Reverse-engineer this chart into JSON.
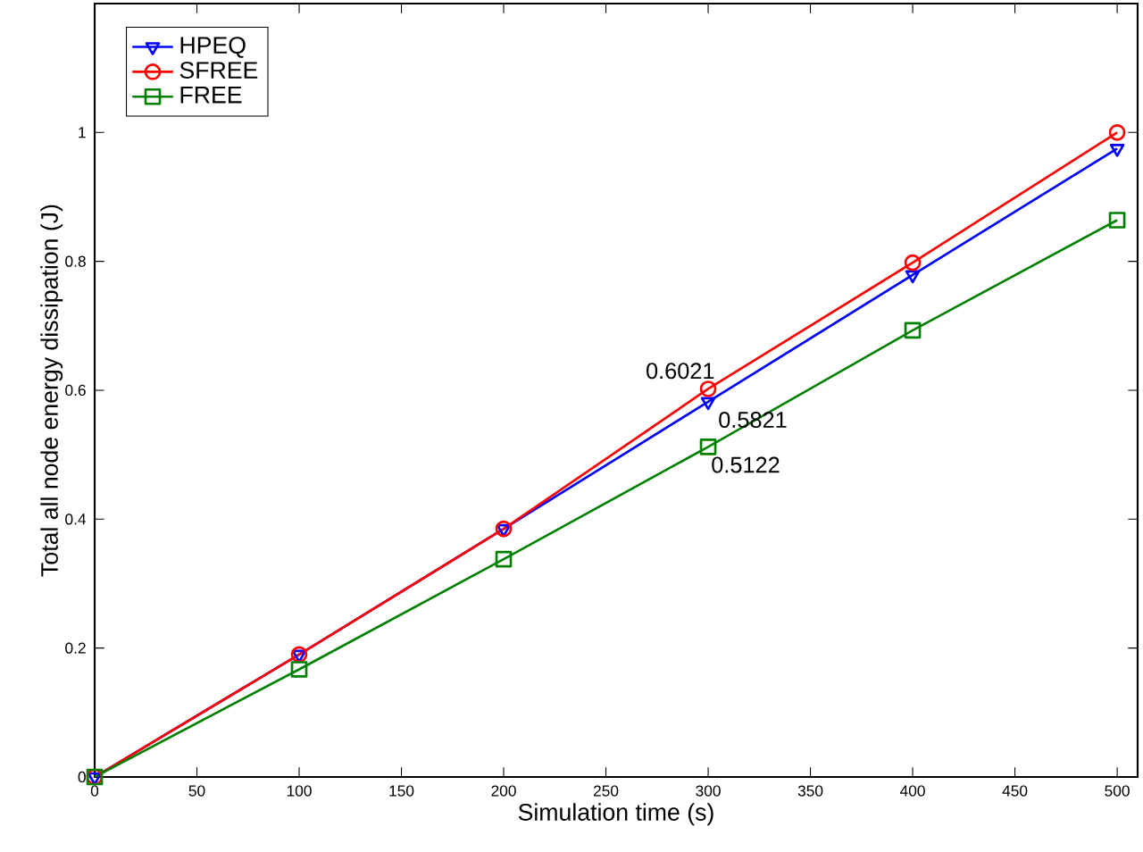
{
  "chart_data": {
    "type": "line",
    "xlabel": "Simulation time (s)",
    "ylabel": "Total all node energy dissipation (J)",
    "x": [
      0,
      100,
      200,
      300,
      400,
      500
    ],
    "series": [
      {
        "name": "HPEQ",
        "color": "#0000ff",
        "marker": "triangle",
        "values": [
          0,
          0.19,
          0.385,
          0.5821,
          0.779,
          0.975
        ],
        "value_labels": [
          null,
          null,
          null,
          "0.5821",
          null,
          null
        ]
      },
      {
        "name": "SFREE",
        "color": "#ff0000",
        "marker": "circle",
        "values": [
          0,
          0.19,
          0.385,
          0.6021,
          0.798,
          1.0
        ],
        "value_labels": [
          null,
          null,
          null,
          "0.6021",
          null,
          null
        ]
      },
      {
        "name": "FREE",
        "color": "#008000",
        "marker": "square",
        "values": [
          0,
          0.167,
          0.338,
          0.5122,
          0.693,
          0.864
        ],
        "value_labels": [
          null,
          null,
          null,
          "0.5122",
          null,
          null
        ]
      }
    ],
    "xlim": [
      0,
      510
    ],
    "ylim": [
      0,
      1.2
    ],
    "xticks": [
      0,
      50,
      100,
      150,
      200,
      250,
      300,
      350,
      400,
      450,
      500
    ],
    "yticks": [
      0,
      0.2,
      0.4,
      0.6,
      0.8,
      1
    ],
    "grid": false,
    "legend": "top left",
    "line_style": "solid"
  }
}
